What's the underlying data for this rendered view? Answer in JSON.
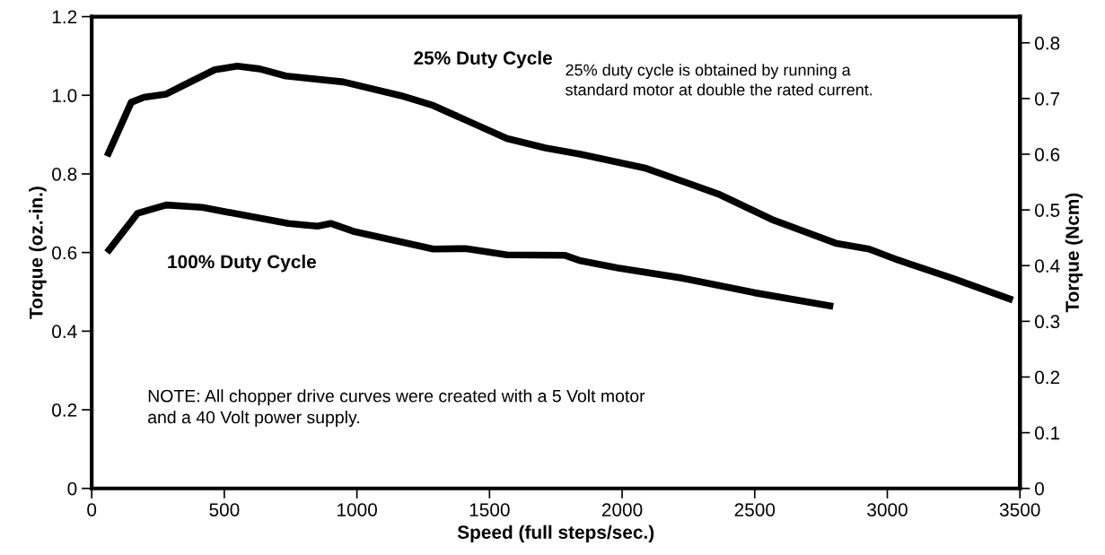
{
  "chart_data": {
    "type": "line",
    "xlabel": "Speed (full steps/sec.)",
    "ylabel": "Torque (oz.-in.)",
    "y2label": "Torque (Ncm)",
    "xlim": [
      0,
      3500
    ],
    "xticks": [
      0,
      500,
      1000,
      1500,
      2000,
      2500,
      3000,
      3500
    ],
    "ylim": [
      0,
      1.2
    ],
    "yticks": [
      0,
      0.2,
      0.4,
      0.6,
      0.8,
      {
        "value": 1.0,
        "label": "1.0"
      },
      1.2
    ],
    "y2lim": [
      0,
      0.847
    ],
    "y2ticks": [
      0,
      0.1,
      0.2,
      0.3,
      0.4,
      0.5,
      0.6,
      0.7,
      0.8
    ],
    "grid": false,
    "legend": false,
    "marker": "none",
    "line_style": "solid",
    "series": [
      {
        "name": "25% Duty Cycle",
        "color": "#000000",
        "x": [
          58,
          149,
          197,
          281,
          342,
          464,
          549,
          634,
          732,
          949,
          1166,
          1288,
          1410,
          1566,
          1711,
          1843,
          2091,
          2362,
          2565,
          2809,
          2931,
          3040,
          3243,
          3473
        ],
        "values": [
          0.845,
          0.982,
          0.995,
          1.003,
          1.024,
          1.065,
          1.074,
          1.067,
          1.049,
          1.034,
          0.999,
          0.974,
          0.937,
          0.89,
          0.866,
          0.85,
          0.814,
          0.749,
          0.684,
          0.623,
          0.609,
          0.581,
          0.535,
          0.479
        ]
      },
      {
        "name": "100% Duty Cycle",
        "color": "#000000",
        "x": [
          58,
          173,
          281,
          417,
          566,
          742,
          851,
          901,
          986,
          1288,
          1410,
          1566,
          1783,
          1843,
          1982,
          2226,
          2497,
          2796
        ],
        "values": [
          0.6,
          0.7,
          0.721,
          0.715,
          0.696,
          0.674,
          0.667,
          0.674,
          0.654,
          0.609,
          0.61,
          0.594,
          0.593,
          0.579,
          0.561,
          0.535,
          0.498,
          0.463
        ]
      }
    ],
    "annotations": [
      "25% duty cycle is obtained by running a\nstandard motor at double the rated current.",
      "NOTE: All chopper drive curves were created with a 5 Volt motor\nand a 40 Volt power supply."
    ]
  }
}
